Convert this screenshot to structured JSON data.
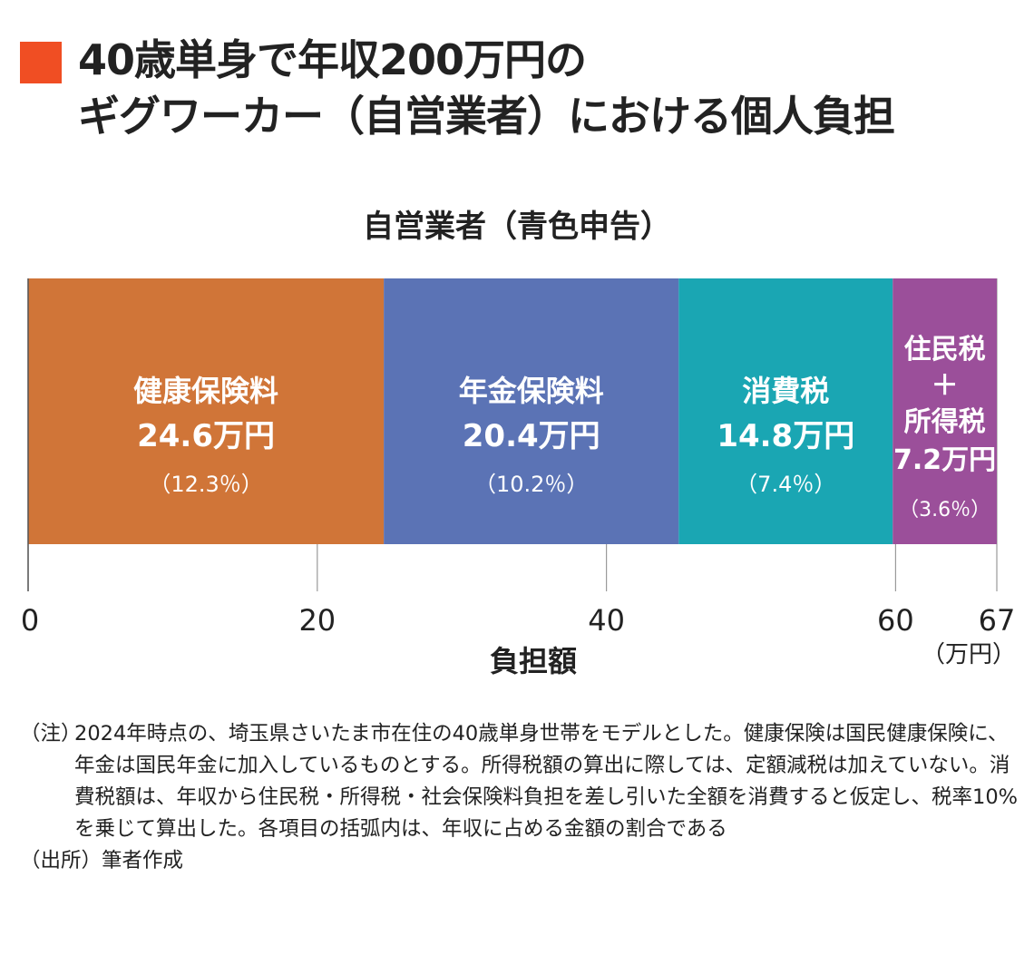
{
  "header": {
    "title_line1": "40歳単身で年収200万円の",
    "title_line2": "ギグワーカー（自営業者）における個人負担",
    "accent_color": "#f04e23"
  },
  "chart_data": {
    "type": "bar",
    "orientation": "horizontal-stacked",
    "title": "自営業者（青色申告）",
    "xlabel": "負担額",
    "unit": "（万円）",
    "xlim": [
      0,
      67
    ],
    "ticks": [
      "0",
      "20",
      "40",
      "60",
      "67"
    ],
    "tick_values": [
      0,
      20,
      40,
      60,
      67
    ],
    "grid": true,
    "segments": [
      {
        "label_lines": [
          "健康保険料"
        ],
        "value": 24.6,
        "value_text": "24.6万円",
        "pct_text": "（12.3％）",
        "color": "#d07538"
      },
      {
        "label_lines": [
          "年金保険料"
        ],
        "value": 20.4,
        "value_text": "20.4万円",
        "pct_text": "（10.2％）",
        "color": "#5b73b5"
      },
      {
        "label_lines": [
          "消費税"
        ],
        "value": 14.8,
        "value_text": "14.8万円",
        "pct_text": "（7.4％）",
        "color": "#1aa6b3"
      },
      {
        "label_lines": [
          "住民税",
          "＋",
          "所得税"
        ],
        "value": 7.2,
        "value_text": "7.2万円",
        "pct_text": "（3.6％）",
        "color": "#9b4f9a"
      }
    ]
  },
  "notes": {
    "note_label": "（注）",
    "note_text": "2024年時点の、埼玉県さいたま市在住の40歳単身世帯をモデルとした。健康保険は国民健康保険に、年金は国民年金に加入しているものとする。所得税額の算出に際しては、定額減税は加えていない。消費税額は、年収から住民税・所得税・社会保険料負担を差し引いた全額を消費すると仮定し、税率10%を乗じて算出した。各項目の括弧内は、年収に占める金額の割合である",
    "source_label": "（出所）",
    "source_text": "筆者作成"
  }
}
